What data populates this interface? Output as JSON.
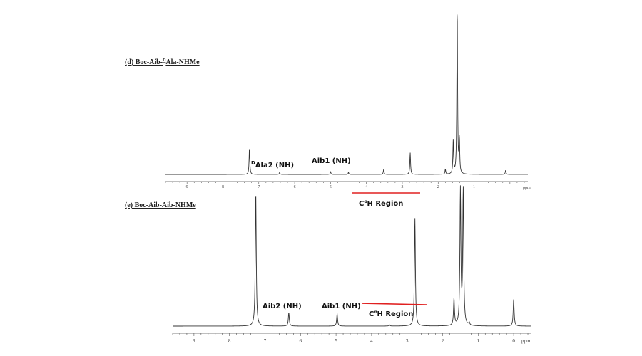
{
  "chart_data": [
    {
      "type": "line",
      "panel": "d",
      "title": "(d) Boc-Aib-DAla-NHMe",
      "title_parts": [
        "(d) Boc-Aib-",
        "D",
        "Ala-NHMe"
      ],
      "x_unit": "ppm",
      "xlim": [
        9.6,
        -0.5
      ],
      "x_reversed": true,
      "x_ticks": [
        9,
        8,
        7,
        6,
        5,
        4,
        3,
        2,
        1
      ],
      "peaks": [
        {
          "ppm": 7.26,
          "height": 0.16
        },
        {
          "ppm": 6.42,
          "height": 0.012
        },
        {
          "ppm": 5.0,
          "height": 0.016
        },
        {
          "ppm": 4.5,
          "height": 0.012
        },
        {
          "ppm": 3.52,
          "height": 0.03
        },
        {
          "ppm": 2.78,
          "height": 0.13
        },
        {
          "ppm": 1.8,
          "height": 0.03
        },
        {
          "ppm": 1.58,
          "height": 0.2
        },
        {
          "ppm": 1.47,
          "height": 1.0
        },
        {
          "ppm": 1.41,
          "height": 0.2
        },
        {
          "ppm": 0.12,
          "height": 0.025
        }
      ],
      "annotations": [
        {
          "text_parts": [
            "D",
            "Ala2 (NH)"
          ],
          "ppm": 6.5
        },
        {
          "text": "Aib1 (NH)",
          "ppm": 4.9
        },
        {
          "text_parts": [
            "C",
            "α",
            "H Region"
          ],
          "range_ppm": [
            4.5,
            2.5
          ]
        }
      ]
    },
    {
      "type": "line",
      "panel": "e",
      "title": "(e) Boc-Aib-Aib-NHMe",
      "x_unit": "ppm",
      "xlim": [
        9.6,
        -0.5
      ],
      "x_reversed": true,
      "x_ticks": [
        9,
        8,
        7,
        6,
        5,
        4,
        3,
        2,
        1,
        0
      ],
      "peaks": [
        {
          "ppm": 7.26,
          "height": 1.0
        },
        {
          "ppm": 6.33,
          "height": 0.1
        },
        {
          "ppm": 4.97,
          "height": 0.09
        },
        {
          "ppm": 3.5,
          "height": 0.01
        },
        {
          "ppm": 2.78,
          "height": 0.8
        },
        {
          "ppm": 1.68,
          "height": 0.2
        },
        {
          "ppm": 1.5,
          "height": 1.0
        },
        {
          "ppm": 1.42,
          "height": 1.0
        },
        {
          "ppm": 1.25,
          "height": 0.02
        },
        {
          "ppm": 0.0,
          "height": 0.2
        }
      ],
      "annotations": [
        {
          "text": "Aib2 (NH)",
          "ppm": 6.4
        },
        {
          "text": "Aib1 (NH)",
          "ppm": 4.9
        },
        {
          "text_parts": [
            "C",
            "α",
            "H Region"
          ],
          "range_ppm": [
            4.1,
            2.4
          ]
        }
      ]
    }
  ]
}
